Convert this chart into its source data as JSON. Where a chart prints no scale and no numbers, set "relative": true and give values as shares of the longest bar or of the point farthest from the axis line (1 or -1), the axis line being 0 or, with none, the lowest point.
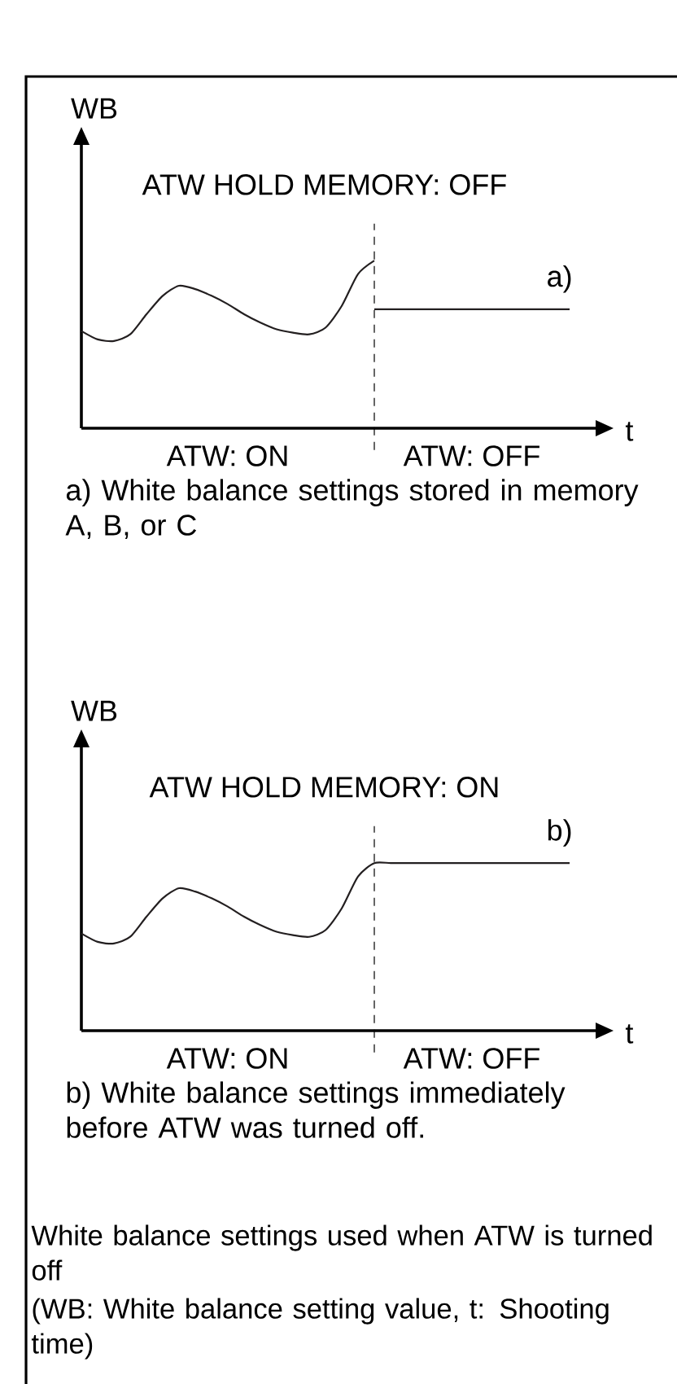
{
  "chart_data": [
    {
      "type": "line",
      "title": "ATW HOLD MEMORY: OFF",
      "xlabel": "t",
      "ylabel": "WB",
      "relative": true,
      "marker": "none",
      "line_style": "solid",
      "categories": [
        null,
        null,
        null,
        null,
        null,
        null,
        null,
        null,
        null,
        null,
        null,
        null,
        null,
        null,
        null,
        null,
        null,
        null,
        null,
        null,
        null,
        null,
        null,
        null,
        null,
        null,
        null,
        null,
        null,
        null,
        null
      ],
      "series": [
        {
          "color": "#231f20",
          "values": [
            0.58,
            0.53,
            0.52,
            0.56,
            0.68,
            0.79,
            0.85,
            0.83,
            0.79,
            0.74,
            0.68,
            0.63,
            0.59,
            0.57,
            0.56,
            0.6,
            0.73,
            0.92,
            1.0,
            null,
            null,
            null,
            null,
            null,
            null,
            null,
            null,
            null,
            null,
            null,
            null
          ]
        },
        {
          "name": "a)",
          "color": "#231f20",
          "values": [
            null,
            null,
            null,
            null,
            null,
            null,
            null,
            null,
            null,
            null,
            null,
            null,
            null,
            null,
            null,
            null,
            null,
            null,
            0.71,
            0.71,
            0.71,
            0.71,
            0.71,
            0.71,
            0.71,
            0.71,
            0.71,
            0.71,
            0.71,
            0.71,
            0.71
          ]
        }
      ],
      "annotations": [
        "ATW: ON",
        "ATW: OFF",
        "a) White balance settings stored in memory A, B, or C"
      ]
    },
    {
      "type": "line",
      "title": "ATW HOLD MEMORY: ON",
      "xlabel": "t",
      "ylabel": "WB",
      "relative": true,
      "marker": "none",
      "line_style": "solid",
      "categories": [
        null,
        null,
        null,
        null,
        null,
        null,
        null,
        null,
        null,
        null,
        null,
        null,
        null,
        null,
        null,
        null,
        null,
        null,
        null,
        null,
        null,
        null,
        null,
        null,
        null,
        null,
        null,
        null,
        null,
        null,
        null
      ],
      "series": [
        {
          "name": "b)",
          "color": "#231f20",
          "values": [
            0.58,
            0.53,
            0.52,
            0.56,
            0.68,
            0.79,
            0.85,
            0.83,
            0.79,
            0.74,
            0.68,
            0.63,
            0.59,
            0.57,
            0.56,
            0.6,
            0.73,
            0.92,
            1.0,
            1.0,
            1.0,
            1.0,
            1.0,
            1.0,
            1.0,
            1.0,
            1.0,
            1.0,
            1.0,
            1.0,
            1.0
          ]
        }
      ],
      "annotations": [
        "ATW: ON",
        "ATW: OFF",
        "b) White balance settings immediately before ATW was turned off.",
        "White balance settings used when ATW is turned off",
        "(WB: White balance setting value, t: Shooting time)"
      ]
    }
  ]
}
